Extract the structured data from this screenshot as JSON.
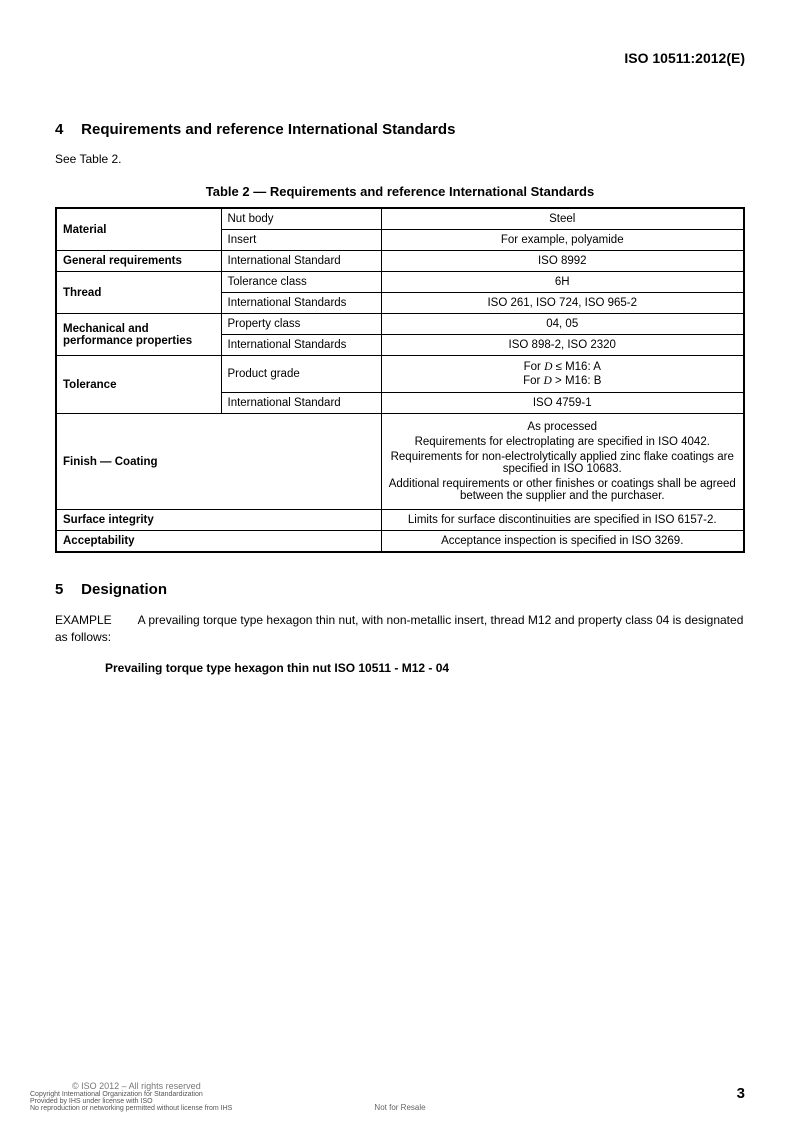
{
  "header": {
    "doc_id": "ISO 10511:2012(E)"
  },
  "section4": {
    "number": "4",
    "title": "Requirements and reference International Standards",
    "intro": "See Table 2.",
    "table_caption": "Table 2 — Requirements and reference International Standards"
  },
  "table": {
    "rows": {
      "material_label": "Material",
      "material_sub1": "Nut body",
      "material_val1": "Steel",
      "material_sub2": "Insert",
      "material_val2": "For example, polyamide",
      "genreq_label": "General requirements",
      "genreq_sub": "International Standard",
      "genreq_val": "ISO 8992",
      "thread_label": "Thread",
      "thread_sub1": "Tolerance class",
      "thread_val1": "6H",
      "thread_sub2": "International Standards",
      "thread_val2": "ISO 261, ISO 724, ISO 965-2",
      "mech_label": "Mechanical and performance properties",
      "mech_sub1": "Property class",
      "mech_val1": "04, 05",
      "mech_sub2": "International Standards",
      "mech_val2": "ISO 898-2, ISO 2320",
      "tol_label": "Tolerance",
      "tol_sub1": "Product grade",
      "tol_grade1_pre": "For ",
      "tol_grade1_d": "D",
      "tol_grade1_post": " ≤ M16: A",
      "tol_grade2_pre": "For ",
      "tol_grade2_d": "D",
      "tol_grade2_post": " > M16: B",
      "tol_sub2": "International Standard",
      "tol_val2": "ISO 4759-1",
      "finish_label": "Finish — Coating",
      "finish_l1": "As processed",
      "finish_l2": "Requirements for electroplating are specified in ISO 4042.",
      "finish_l3": "Requirements for non-electrolytically applied zinc flake coatings are specified in ISO 10683.",
      "finish_l4": "Additional requirements or other finishes or coatings shall be agreed between the supplier and the purchaser.",
      "surf_label": "Surface integrity",
      "surf_val": "Limits for surface discontinuities are specified in ISO 6157-2.",
      "acc_label": "Acceptability",
      "acc_val": "Acceptance inspection is specified in ISO 3269."
    }
  },
  "section5": {
    "number": "5",
    "title": "Designation",
    "example_label": "EXAMPLE",
    "example_text": "A prevailing torque type hexagon thin nut, with non-metallic insert, thread M12 and property class 04 is designated as follows:",
    "designation": "Prevailing torque type hexagon thin nut ISO 10511 - M12 - 04"
  },
  "footer": {
    "copy_main": "© ISO 2012 – All rights reserved",
    "line1": "Copyright International Organization for Standardization",
    "line2": "Provided by IHS under license with ISO",
    "line3": "No reproduction or networking permitted without license from IHS",
    "nfr": "Not for Resale",
    "page": "3"
  }
}
